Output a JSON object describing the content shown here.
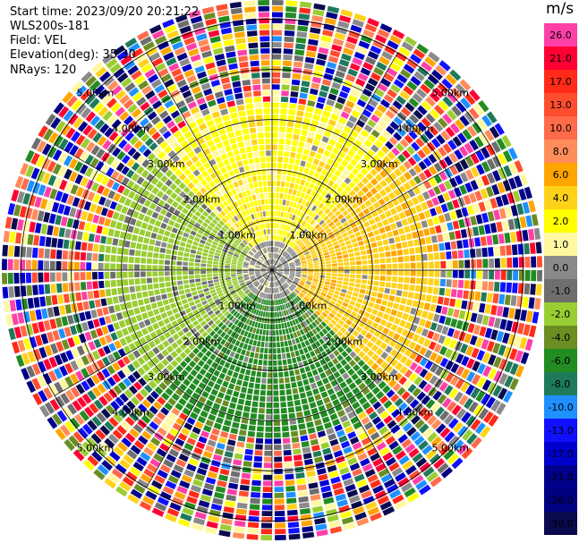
{
  "info": {
    "start_time": "Start time: 2023/09/20 20:21:22",
    "station": "WLS200s-181",
    "field": "Field: VEL",
    "elevation": "Elevation(deg): 35.30",
    "nrays": "NRays: 120"
  },
  "chart_data": {
    "type": "heatmap",
    "subtype": "polar-ppi",
    "field": "VEL",
    "unit": "m/s",
    "nrays": 120,
    "range_rings_km": [
      1.0,
      2.0,
      3.0,
      4.0,
      5.0
    ],
    "range_ring_labels": [
      "1.00km",
      "2.00km",
      "3.00km",
      "4.00km",
      "5.00km"
    ],
    "max_range_km": 5.4,
    "colorbar": {
      "labels": [
        "26.0",
        "21.0",
        "17.0",
        "13.0",
        "10.0",
        "8.0",
        "6.0",
        "4.0",
        "2.0",
        "1.0",
        "0.0",
        "-1.0",
        "-2.0",
        "-4.0",
        "-6.0",
        "-8.0",
        "-10.0",
        "-13.0",
        "-17.0",
        "-21.0",
        "-26.0",
        "-30.0"
      ],
      "colors": [
        "#ff3fa8",
        "#ff0033",
        "#ff2a1a",
        "#ff4d2e",
        "#ff6a4a",
        "#ff8c5a",
        "#ffa500",
        "#ffd21a",
        "#ffff00",
        "#fff8a0",
        "#8a8a8a",
        "#6e6e6e",
        "#9acd32",
        "#6b8e23",
        "#228b22",
        "#1e7a5a",
        "#1e90ff",
        "#1010ff",
        "#0000cd",
        "#00008b",
        "#000080",
        "#0a0a50"
      ]
    },
    "regions": [
      {
        "sector": "north",
        "range_km": [
          1.0,
          3.0
        ],
        "value_ms": 2.0
      },
      {
        "sector": "east",
        "range_km": [
          0.5,
          3.0
        ],
        "value_ms": 4.0
      },
      {
        "sector": "west",
        "range_km": [
          0.5,
          3.0
        ],
        "value_ms": -2.0
      },
      {
        "sector": "south",
        "range_km": [
          1.0,
          3.0
        ],
        "value_ms": -6.0
      },
      {
        "sector": "near",
        "range_km": [
          0.0,
          0.6
        ],
        "value_ms": 0.0
      }
    ]
  }
}
